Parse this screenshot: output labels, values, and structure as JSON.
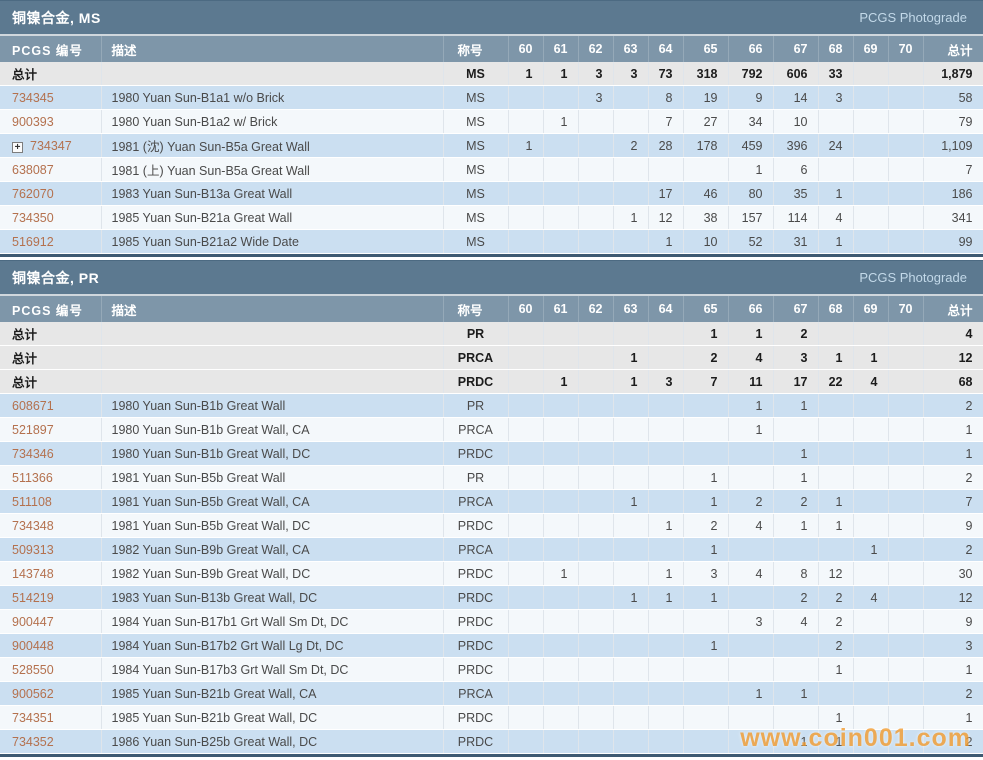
{
  "watermark": "www.coin001.com",
  "colors": {
    "section_header_bg": "#5c7990",
    "column_header_bg": "#7e96a9",
    "row_blue": "#cbdff1",
    "row_white": "#f4f8fb",
    "total_row_bg": "#e7e7e7",
    "id_link": "#b4714e",
    "photograde_link": "#c3d9e9",
    "table_border": "#3e5a72",
    "watermark": "#f39c2f"
  },
  "columns": [
    "PCGS 编号",
    "描述",
    "称号",
    "60",
    "61",
    "62",
    "63",
    "64",
    "65",
    "66",
    "67",
    "68",
    "69",
    "70",
    "总计"
  ],
  "total_label": "总计",
  "tables": [
    {
      "title": "铜镍合金, MS",
      "link": "PCGS Photograde",
      "total_rows": [
        {
          "label": "总计",
          "desig": "MS",
          "grades": [
            "1",
            "1",
            "3",
            "3",
            "73",
            "318",
            "792",
            "606",
            "33",
            "",
            ""
          ],
          "total": "1,879"
        }
      ],
      "rows": [
        {
          "id": "734345",
          "desc": "1980 Yuan Sun-B1a1 w/o Brick",
          "desig": "MS",
          "grades": [
            "",
            "",
            "3",
            "",
            "8",
            "19",
            "9",
            "14",
            "3",
            "",
            ""
          ],
          "total": "58"
        },
        {
          "id": "900393",
          "desc": "1980 Yuan Sun-B1a2 w/ Brick",
          "desig": "MS",
          "grades": [
            "",
            "1",
            "",
            "",
            "7",
            "27",
            "34",
            "10",
            "",
            "",
            ""
          ],
          "total": "79"
        },
        {
          "id": "734347",
          "expand": true,
          "desc": "1981 (沈) Yuan Sun-B5a Great Wall",
          "desig": "MS",
          "grades": [
            "1",
            "",
            "",
            "2",
            "28",
            "178",
            "459",
            "396",
            "24",
            "",
            ""
          ],
          "total": "1,109"
        },
        {
          "id": "638087",
          "desc": "1981 (上) Yuan Sun-B5a Great Wall",
          "desig": "MS",
          "grades": [
            "",
            "",
            "",
            "",
            "",
            "",
            "1",
            "6",
            "",
            "",
            ""
          ],
          "total": "7"
        },
        {
          "id": "762070",
          "desc": "1983 Yuan Sun-B13a Great Wall",
          "desig": "MS",
          "grades": [
            "",
            "",
            "",
            "",
            "17",
            "46",
            "80",
            "35",
            "1",
            "",
            ""
          ],
          "total": "186"
        },
        {
          "id": "734350",
          "desc": "1985 Yuan Sun-B21a Great Wall",
          "desig": "MS",
          "grades": [
            "",
            "",
            "",
            "1",
            "12",
            "38",
            "157",
            "114",
            "4",
            "",
            ""
          ],
          "total": "341"
        },
        {
          "id": "516912",
          "desc": "1985 Yuan Sun-B21a2 Wide Date",
          "desig": "MS",
          "grades": [
            "",
            "",
            "",
            "",
            "1",
            "10",
            "52",
            "31",
            "1",
            "",
            ""
          ],
          "total": "99"
        }
      ]
    },
    {
      "title": "铜镍合金, PR",
      "link": "PCGS Photograde",
      "total_rows": [
        {
          "label": "总计",
          "desig": "PR",
          "grades": [
            "",
            "",
            "",
            "",
            "",
            "1",
            "1",
            "2",
            "",
            "",
            ""
          ],
          "total": "4"
        },
        {
          "label": "总计",
          "desig": "PRCA",
          "grades": [
            "",
            "",
            "",
            "1",
            "",
            "2",
            "4",
            "3",
            "1",
            "1",
            ""
          ],
          "total": "12"
        },
        {
          "label": "总计",
          "desig": "PRDC",
          "grades": [
            "",
            "1",
            "",
            "1",
            "3",
            "7",
            "11",
            "17",
            "22",
            "4",
            ""
          ],
          "total": "68"
        }
      ],
      "rows": [
        {
          "id": "608671",
          "desc": "1980 Yuan Sun-B1b Great Wall",
          "desig": "PR",
          "grades": [
            "",
            "",
            "",
            "",
            "",
            "",
            "1",
            "1",
            "",
            "",
            ""
          ],
          "total": "2"
        },
        {
          "id": "521897",
          "desc": "1980 Yuan Sun-B1b Great Wall, CA",
          "desig": "PRCA",
          "grades": [
            "",
            "",
            "",
            "",
            "",
            "",
            "1",
            "",
            "",
            "",
            ""
          ],
          "total": "1"
        },
        {
          "id": "734346",
          "desc": "1980 Yuan Sun-B1b Great Wall, DC",
          "desig": "PRDC",
          "grades": [
            "",
            "",
            "",
            "",
            "",
            "",
            "",
            "1",
            "",
            "",
            ""
          ],
          "total": "1"
        },
        {
          "id": "511366",
          "desc": "1981 Yuan Sun-B5b Great Wall",
          "desig": "PR",
          "grades": [
            "",
            "",
            "",
            "",
            "",
            "1",
            "",
            "1",
            "",
            "",
            ""
          ],
          "total": "2"
        },
        {
          "id": "511108",
          "desc": "1981 Yuan Sun-B5b Great Wall, CA",
          "desig": "PRCA",
          "grades": [
            "",
            "",
            "",
            "1",
            "",
            "1",
            "2",
            "2",
            "1",
            "",
            ""
          ],
          "total": "7"
        },
        {
          "id": "734348",
          "desc": "1981 Yuan Sun-B5b Great Wall, DC",
          "desig": "PRDC",
          "grades": [
            "",
            "",
            "",
            "",
            "1",
            "2",
            "4",
            "1",
            "1",
            "",
            ""
          ],
          "total": "9"
        },
        {
          "id": "509313",
          "desc": "1982 Yuan Sun-B9b Great Wall, CA",
          "desig": "PRCA",
          "grades": [
            "",
            "",
            "",
            "",
            "",
            "1",
            "",
            "",
            "",
            "1",
            ""
          ],
          "total": "2"
        },
        {
          "id": "143748",
          "desc": "1982 Yuan Sun-B9b Great Wall, DC",
          "desig": "PRDC",
          "grades": [
            "",
            "1",
            "",
            "",
            "1",
            "3",
            "4",
            "8",
            "12",
            "",
            ""
          ],
          "total": "30"
        },
        {
          "id": "514219",
          "desc": "1983 Yuan Sun-B13b Great Wall, DC",
          "desig": "PRDC",
          "grades": [
            "",
            "",
            "",
            "1",
            "1",
            "1",
            "",
            "2",
            "2",
            "4",
            ""
          ],
          "total": "12"
        },
        {
          "id": "900447",
          "desc": "1984 Yuan Sun-B17b1 Grt Wall Sm Dt, DC",
          "desig": "PRDC",
          "grades": [
            "",
            "",
            "",
            "",
            "",
            "",
            "3",
            "4",
            "2",
            "",
            ""
          ],
          "total": "9"
        },
        {
          "id": "900448",
          "desc": "1984 Yuan Sun-B17b2 Grt Wall Lg Dt, DC",
          "desig": "PRDC",
          "grades": [
            "",
            "",
            "",
            "",
            "",
            "1",
            "",
            "",
            "2",
            "",
            ""
          ],
          "total": "3"
        },
        {
          "id": "528550",
          "desc": "1984 Yuan Sun-B17b3 Grt Wall Sm Dt, DC",
          "desig": "PRDC",
          "grades": [
            "",
            "",
            "",
            "",
            "",
            "",
            "",
            "",
            "1",
            "",
            ""
          ],
          "total": "1"
        },
        {
          "id": "900562",
          "desc": "1985 Yuan Sun-B21b Great Wall, CA",
          "desig": "PRCA",
          "grades": [
            "",
            "",
            "",
            "",
            "",
            "",
            "1",
            "1",
            "",
            "",
            ""
          ],
          "total": "2"
        },
        {
          "id": "734351",
          "desc": "1985 Yuan Sun-B21b Great Wall, DC",
          "desig": "PRDC",
          "grades": [
            "",
            "",
            "",
            "",
            "",
            "",
            "",
            "",
            "1",
            "",
            ""
          ],
          "total": "1"
        },
        {
          "id": "734352",
          "desc": "1986 Yuan Sun-B25b Great Wall, DC",
          "desig": "PRDC",
          "grades": [
            "",
            "",
            "",
            "",
            "",
            "",
            "",
            "1",
            "1",
            "",
            ""
          ],
          "total": "2"
        }
      ]
    }
  ]
}
